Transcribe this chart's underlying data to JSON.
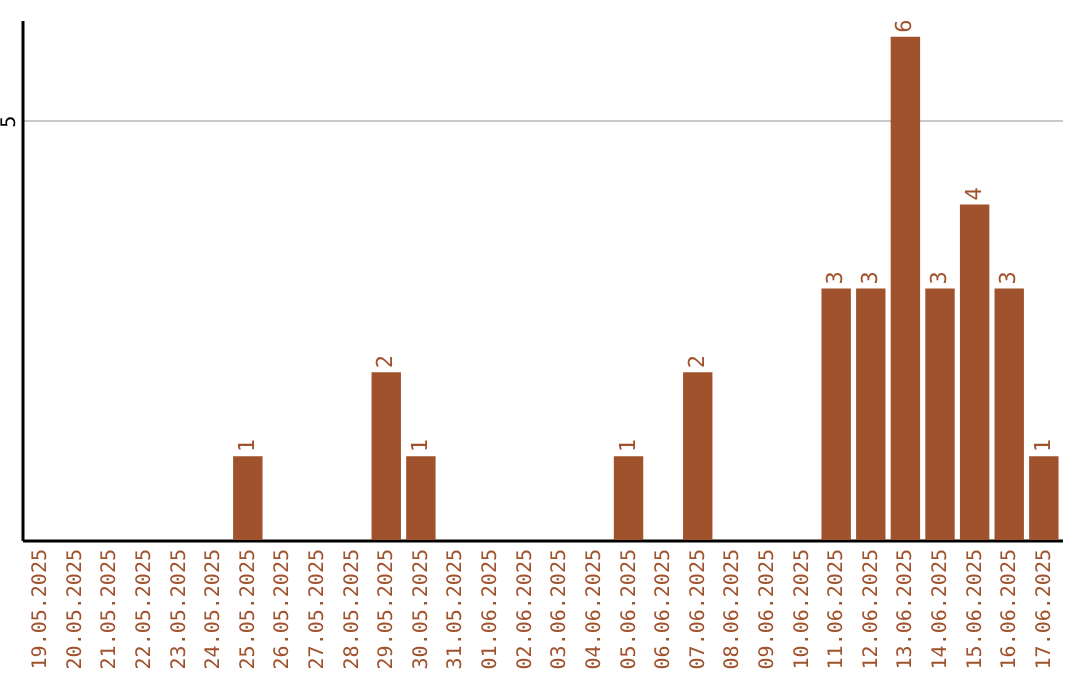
{
  "chart_data": {
    "type": "bar",
    "categories": [
      "19.05.2025",
      "20.05.2025",
      "21.05.2025",
      "22.05.2025",
      "23.05.2025",
      "24.05.2025",
      "25.05.2025",
      "26.05.2025",
      "27.05.2025",
      "28.05.2025",
      "29.05.2025",
      "30.05.2025",
      "31.05.2025",
      "01.06.2025",
      "02.06.2025",
      "03.06.2025",
      "04.06.2025",
      "05.06.2025",
      "06.06.2025",
      "07.06.2025",
      "08.06.2025",
      "09.06.2025",
      "10.06.2025",
      "11.06.2025",
      "12.06.2025",
      "13.06.2025",
      "14.06.2025",
      "15.06.2025",
      "16.06.2025",
      "17.06.2025"
    ],
    "values": [
      0,
      0,
      0,
      0,
      0,
      0,
      1,
      0,
      0,
      0,
      2,
      1,
      0,
      0,
      0,
      0,
      0,
      1,
      0,
      2,
      0,
      0,
      0,
      3,
      3,
      6,
      3,
      4,
      3,
      1
    ],
    "value_labels": [
      null,
      null,
      null,
      null,
      null,
      null,
      "1",
      null,
      null,
      null,
      "2",
      "1",
      null,
      null,
      null,
      null,
      null,
      "1",
      null,
      "2",
      null,
      null,
      null,
      "3",
      "3",
      "6",
      "3",
      "4",
      "3",
      "1"
    ],
    "color": "#a0522d",
    "ylim": [
      0,
      6.2
    ],
    "yticks": [
      5
    ],
    "grid": "y"
  }
}
